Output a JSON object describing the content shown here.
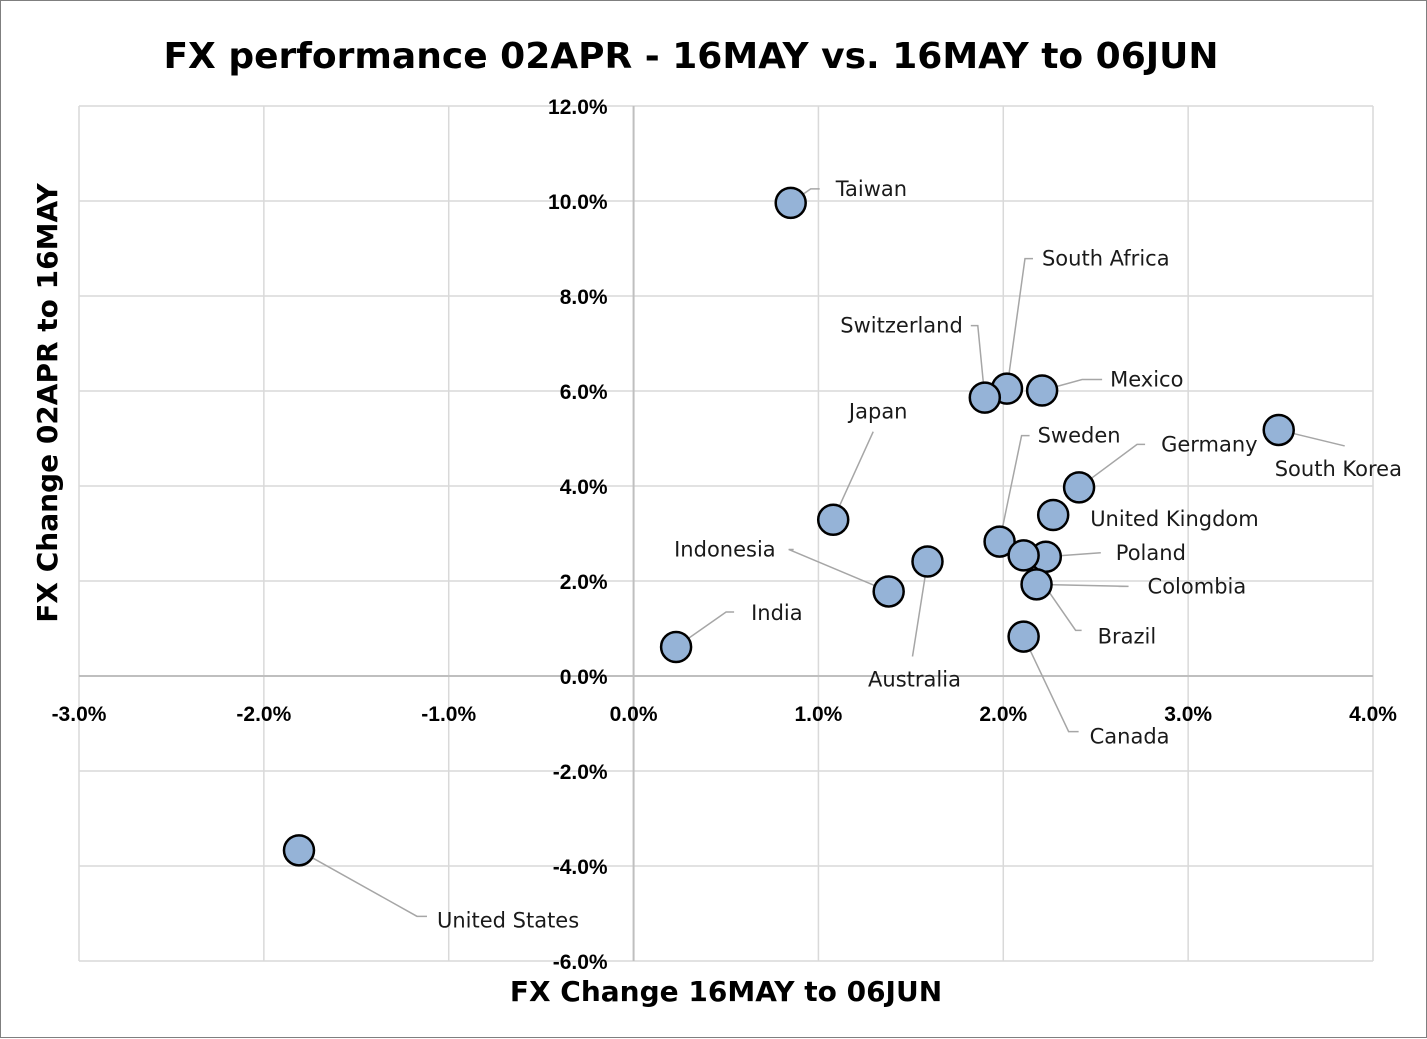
{
  "chart_data": {
    "type": "scatter",
    "title": "FX performance 02APR - 16MAY vs. 16MAY to 06JUN",
    "xlabel": "FX Change 16MAY to 06JUN",
    "ylabel": "FX Change 02APR to 16MAY",
    "xlim": [
      -0.03,
      0.04
    ],
    "ylim": [
      -0.06,
      0.12
    ],
    "x_ticks": [
      -0.03,
      -0.02,
      -0.01,
      0,
      0.01,
      0.02,
      0.03,
      0.04
    ],
    "x_tick_labels": [
      "-3.0%",
      "-2.0%",
      "-1.0%",
      "0.0%",
      "1.0%",
      "2.0%",
      "3.0%",
      "4.0%"
    ],
    "y_ticks": [
      -0.06,
      -0.04,
      -0.02,
      0,
      0.02,
      0.04,
      0.06,
      0.08,
      0.1,
      0.12
    ],
    "y_tick_labels": [
      "-6.0%",
      "-4.0%",
      "-2.0%",
      "0.0%",
      "2.0%",
      "4.0%",
      "6.0%",
      "8.0%",
      "10.0%",
      "12.0%"
    ],
    "grid": true,
    "marker_color": "#95b3d7",
    "points": [
      {
        "label": "Taiwan",
        "x": 0.0085,
        "y": 0.0996
      },
      {
        "label": "South Africa",
        "x": 0.0202,
        "y": 0.0605
      },
      {
        "label": "Switzerland",
        "x": 0.019,
        "y": 0.0586
      },
      {
        "label": "Mexico",
        "x": 0.0221,
        "y": 0.0601
      },
      {
        "label": "Japan",
        "x": 0.0108,
        "y": 0.0329
      },
      {
        "label": "Sweden",
        "x": 0.0198,
        "y": 0.0283
      },
      {
        "label": "Germany",
        "x": 0.0241,
        "y": 0.0397
      },
      {
        "label": "South Korea",
        "x": 0.0349,
        "y": 0.0518
      },
      {
        "label": "United Kingdom",
        "x": 0.0227,
        "y": 0.0339
      },
      {
        "label": "Poland",
        "x": 0.0223,
        "y": 0.0251
      },
      {
        "label": "Indonesia",
        "x": 0.0138,
        "y": 0.0178
      },
      {
        "label": "Australia",
        "x": 0.0159,
        "y": 0.0241
      },
      {
        "label": "Colombia",
        "x": 0.0218,
        "y": 0.0193
      },
      {
        "label": "Brazil",
        "x": 0.0211,
        "y": 0.0254
      },
      {
        "label": "India",
        "x": 0.0023,
        "y": 0.0061
      },
      {
        "label": "Canada",
        "x": 0.0211,
        "y": 0.0083
      },
      {
        "label": "United States",
        "x": -0.0181,
        "y": -0.0367
      }
    ]
  }
}
